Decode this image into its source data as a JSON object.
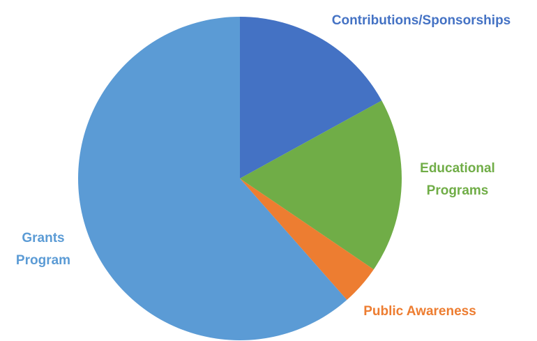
{
  "chart_data": {
    "type": "pie",
    "title": "",
    "legend": "none",
    "slices": [
      {
        "label": "Contributions/Sponsorships",
        "label_lines": [
          "Contributions/Sponsorships"
        ],
        "value": 17,
        "color": "#4472C4"
      },
      {
        "label": "Educational Programs",
        "label_lines": [
          "Educational",
          "Programs"
        ],
        "value": 17.5,
        "color": "#70AD47"
      },
      {
        "label": "Public Awareness",
        "label_lines": [
          "Public Awareness"
        ],
        "value": 4,
        "color": "#ED7D31"
      },
      {
        "label": "Grants Program",
        "label_lines": [
          "Grants",
          "Program"
        ],
        "value": 61.5,
        "color": "#5B9BD5"
      }
    ]
  }
}
